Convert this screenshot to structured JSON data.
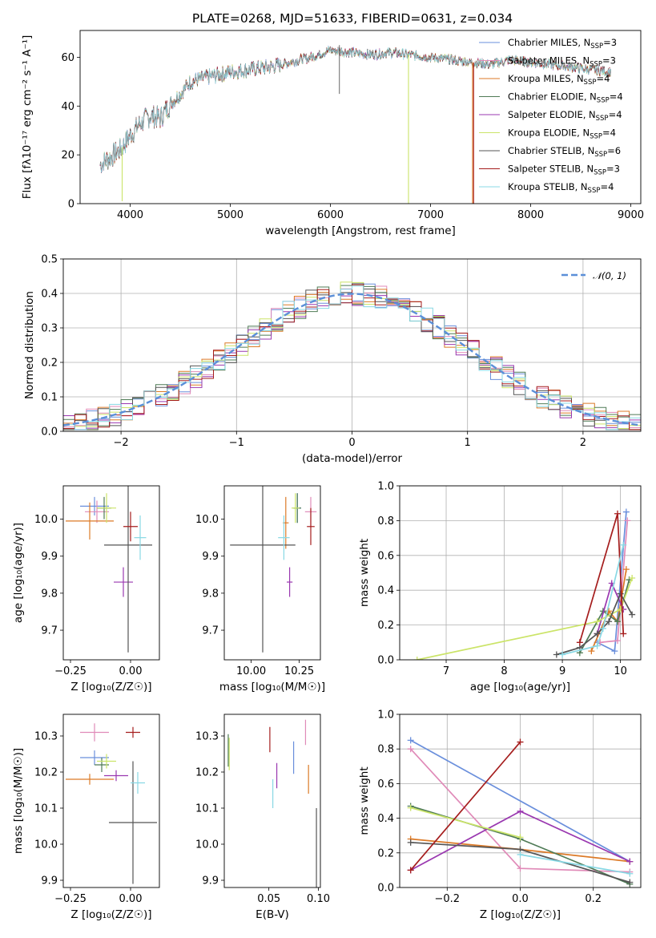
{
  "figure": {
    "title": "PLATE=0268, MJD=51633, FIBERID=0631, z=0.034"
  },
  "colors": {
    "Chabrier MILES": "#6a8fdc",
    "Salpeter MILES": "#e08ab8",
    "Kroupa MILES": "#dc7a27",
    "Chabrier ELODIE": "#4f7b56",
    "Salpeter ELODIE": "#9a38b0",
    "Kroupa ELODIE": "#cbe468",
    "Chabrier STELIB": "#555555",
    "Salpeter STELIB": "#a51d1d",
    "Kroupa STELIB": "#88d8e4",
    "normal": "#5b8fd8"
  },
  "chart_data": [
    {
      "id": "spectrum",
      "type": "line",
      "xlabel": "wavelength [Angstrom, rest frame]",
      "ylabel": "Flux [fλ10⁻¹⁷ erg cm⁻² s⁻¹ A⁻¹]",
      "xlim": [
        3500,
        9100
      ],
      "ylim": [
        0,
        71
      ],
      "xticks": [
        4000,
        5000,
        6000,
        7000,
        8000,
        9000
      ],
      "yticks": [
        0,
        20,
        40,
        60
      ],
      "continuum": {
        "x": [
          3700,
          3800,
          3900,
          4000,
          4100,
          4200,
          4300,
          4400,
          4500,
          4600,
          4800,
          5000,
          5200,
          5400,
          5600,
          5800,
          6000,
          6200,
          6400,
          6600,
          6800,
          7000,
          7200,
          7400,
          7600,
          7800,
          8000,
          8200,
          8400,
          8600,
          8800
        ],
        "y": [
          16,
          19,
          22,
          28,
          33,
          36,
          35,
          41,
          45,
          50,
          52,
          54,
          55,
          56,
          58,
          60,
          63,
          62,
          61,
          62,
          61,
          60,
          59,
          58,
          57,
          59,
          58,
          57,
          56,
          55,
          54
        ]
      },
      "dropouts": [
        {
          "model": "Kroupa ELODIE",
          "x": 3920,
          "y": 1
        },
        {
          "model": "Kroupa ELODIE",
          "x": 6780,
          "y": 0
        },
        {
          "model": "Kroupa MILES",
          "x": 7420,
          "y": 0
        },
        {
          "model": "Salpeter STELIB",
          "x": 7430,
          "y": 0
        }
      ],
      "legend": [
        {
          "name": "Chabrier MILES",
          "label": "Chabrier MILES, N",
          "sub": "SSP",
          "eq": "=3"
        },
        {
          "name": "Salpeter MILES",
          "label": "Salpeter MILES, N",
          "sub": "SSP",
          "eq": "=3"
        },
        {
          "name": "Kroupa MILES",
          "label": "Kroupa MILES, N",
          "sub": "SSP",
          "eq": "=4"
        },
        {
          "name": "Chabrier ELODIE",
          "label": "Chabrier ELODIE, N",
          "sub": "SSP",
          "eq": "=4"
        },
        {
          "name": "Salpeter ELODIE",
          "label": "Salpeter ELODIE, N",
          "sub": "SSP",
          "eq": "=4"
        },
        {
          "name": "Kroupa ELODIE",
          "label": "Kroupa ELODIE, N",
          "sub": "SSP",
          "eq": "=4"
        },
        {
          "name": "Chabrier STELIB",
          "label": "Chabrier STELIB, N",
          "sub": "SSP",
          "eq": "=6"
        },
        {
          "name": "Salpeter STELIB",
          "label": "Salpeter STELIB, N",
          "sub": "SSP",
          "eq": "=3"
        },
        {
          "name": "Kroupa STELIB",
          "label": "Kroupa STELIB, N",
          "sub": "SSP",
          "eq": "=4"
        }
      ]
    },
    {
      "id": "residuals",
      "type": "step-histogram",
      "xlabel": "(data-model)/error",
      "ylabel": "Normed distribution",
      "xlim": [
        -2.5,
        2.5
      ],
      "ylim": [
        0,
        0.5
      ],
      "xticks": [
        -2,
        -1,
        0,
        1,
        2
      ],
      "yticks": [
        0.0,
        0.1,
        0.2,
        0.3,
        0.4,
        0.5
      ],
      "grid": true,
      "bin_width": 0.1,
      "curve_label": "𝒩(0, 1)",
      "legend_position": "upper right"
    },
    {
      "id": "age_vs_Z",
      "type": "errorbar",
      "xlabel": "Z [log₁₀(Z/Z☉)]",
      "ylabel": "age  [log₁₀(age/yr)]",
      "xlim": [
        -0.28,
        0.12
      ],
      "ylim": [
        9.62,
        10.09
      ],
      "xticks": [
        -0.25,
        0.0
      ],
      "yticks": [
        9.7,
        9.8,
        9.9,
        10.0
      ],
      "points": [
        {
          "model": "Chabrier MILES",
          "x": -0.15,
          "xerr": 0.06,
          "y": 10.035,
          "yerr": 0.025
        },
        {
          "model": "Salpeter MILES",
          "x": -0.14,
          "xerr": 0.05,
          "y": 10.02,
          "yerr": 0.03
        },
        {
          "model": "Kroupa MILES",
          "x": -0.17,
          "xerr": 0.1,
          "y": 9.995,
          "yerr": 0.05
        },
        {
          "model": "Chabrier ELODIE",
          "x": -0.11,
          "xerr": 0.03,
          "y": 10.03,
          "yerr": 0.03
        },
        {
          "model": "Salpeter ELODIE",
          "x": -0.03,
          "xerr": 0.04,
          "y": 9.83,
          "yerr": 0.04
        },
        {
          "model": "Kroupa ELODIE",
          "x": -0.1,
          "xerr": 0.04,
          "y": 10.03,
          "yerr": 0.04
        },
        {
          "model": "Chabrier STELIB",
          "x": -0.01,
          "xerr": 0.1,
          "y": 9.93,
          "yerr": 0.29
        },
        {
          "model": "Salpeter STELIB",
          "x": 0.0,
          "xerr": 0.03,
          "y": 9.98,
          "yerr": 0.04
        },
        {
          "model": "Kroupa STELIB",
          "x": 0.04,
          "xerr": 0.025,
          "y": 9.95,
          "yerr": 0.06
        }
      ]
    },
    {
      "id": "age_vs_mass",
      "type": "errorbar",
      "xlabel": "mass [log₁₀(M/M☉)]",
      "ylabel": "",
      "xlim": [
        9.86,
        10.36
      ],
      "ylim": [
        9.62,
        10.09
      ],
      "xticks": [
        10.0,
        10.25
      ],
      "yticks": [
        9.7,
        9.8,
        9.9,
        10.0
      ],
      "points": [
        {
          "model": "Chabrier MILES",
          "x": 10.24,
          "xerr": 0.02,
          "y": 10.03,
          "yerr": 0.04
        },
        {
          "model": "Salpeter MILES",
          "x": 10.31,
          "xerr": 0.03,
          "y": 10.02,
          "yerr": 0.04
        },
        {
          "model": "Kroupa MILES",
          "x": 10.18,
          "xerr": 0.015,
          "y": 9.99,
          "yerr": 0.07
        },
        {
          "model": "Chabrier ELODIE",
          "x": 10.24,
          "xerr": 0.02,
          "y": 10.03,
          "yerr": 0.04
        },
        {
          "model": "Salpeter ELODIE",
          "x": 10.2,
          "xerr": 0.015,
          "y": 9.83,
          "yerr": 0.04
        },
        {
          "model": "Kroupa ELODIE",
          "x": 10.23,
          "xerr": 0.02,
          "y": 10.03,
          "yerr": 0.04
        },
        {
          "model": "Chabrier STELIB",
          "x": 10.06,
          "xerr": 0.17,
          "y": 9.93,
          "yerr": 0.29
        },
        {
          "model": "Salpeter STELIB",
          "x": 10.31,
          "xerr": 0.02,
          "y": 9.98,
          "yerr": 0.05
        },
        {
          "model": "Kroupa STELIB",
          "x": 10.17,
          "xerr": 0.03,
          "y": 9.95,
          "yerr": 0.06
        }
      ]
    },
    {
      "id": "weight_vs_age",
      "type": "line",
      "xlabel": "age  [log₁₀(age/yr)]",
      "ylabel": "mass weight",
      "xlim": [
        6.2,
        10.35
      ],
      "ylim": [
        0,
        1
      ],
      "xticks": [
        7,
        8,
        9,
        10
      ],
      "yticks": [
        0.0,
        0.2,
        0.4,
        0.6,
        0.8,
        1.0
      ],
      "grid": true,
      "series": [
        {
          "model": "Chabrier MILES",
          "x": [
            9.6,
            9.9,
            10.1
          ],
          "y": [
            0.1,
            0.05,
            0.85
          ]
        },
        {
          "model": "Salpeter MILES",
          "x": [
            9.65,
            9.95,
            10.12
          ],
          "y": [
            0.1,
            0.11,
            0.8
          ]
        },
        {
          "model": "Kroupa MILES",
          "x": [
            9.5,
            9.8,
            9.95,
            10.1
          ],
          "y": [
            0.05,
            0.28,
            0.22,
            0.52
          ]
        },
        {
          "model": "Chabrier ELODIE",
          "x": [
            9.3,
            9.7,
            9.95,
            10.15
          ],
          "y": [
            0.04,
            0.28,
            0.22,
            0.46
          ]
        },
        {
          "model": "Salpeter ELODIE",
          "x": [
            9.6,
            9.85,
            10.05
          ],
          "y": [
            0.15,
            0.44,
            0.29
          ]
        },
        {
          "model": "Kroupa ELODIE",
          "x": [
            6.5,
            9.6,
            10.0,
            10.2
          ],
          "y": [
            0.0,
            0.22,
            0.29,
            0.47
          ]
        },
        {
          "model": "Chabrier STELIB",
          "x": [
            8.9,
            9.3,
            9.6,
            9.8,
            10.0,
            10.2
          ],
          "y": [
            0.03,
            0.07,
            0.15,
            0.22,
            0.38,
            0.26
          ]
        },
        {
          "model": "Salpeter STELIB",
          "x": [
            9.3,
            9.95,
            10.05
          ],
          "y": [
            0.1,
            0.84,
            0.15
          ]
        },
        {
          "model": "Kroupa STELIB",
          "x": [
            9.0,
            9.6,
            9.7,
            10.05
          ],
          "y": [
            0.03,
            0.08,
            0.18,
            0.66
          ]
        }
      ]
    },
    {
      "id": "mass_vs_Z",
      "type": "errorbar",
      "xlabel": "Z [log₁₀(Z/Z☉)]",
      "ylabel": "mass [log₁₀(M/M☉)]",
      "xlim": [
        -0.28,
        0.12
      ],
      "ylim": [
        9.88,
        10.36
      ],
      "xticks": [
        -0.25,
        0.0
      ],
      "yticks": [
        9.9,
        10.0,
        10.1,
        10.2,
        10.3
      ],
      "points": [
        {
          "model": "Chabrier MILES",
          "x": -0.15,
          "xerr": 0.06,
          "y": 10.24,
          "yerr": 0.02
        },
        {
          "model": "Salpeter MILES",
          "x": -0.15,
          "xerr": 0.06,
          "y": 10.31,
          "yerr": 0.025
        },
        {
          "model": "Kroupa MILES",
          "x": -0.17,
          "xerr": 0.1,
          "y": 10.18,
          "yerr": 0.015
        },
        {
          "model": "Chabrier ELODIE",
          "x": -0.12,
          "xerr": 0.03,
          "y": 10.22,
          "yerr": 0.02
        },
        {
          "model": "Salpeter ELODIE",
          "x": -0.06,
          "xerr": 0.05,
          "y": 10.19,
          "yerr": 0.015
        },
        {
          "model": "Kroupa ELODIE",
          "x": -0.1,
          "xerr": 0.04,
          "y": 10.23,
          "yerr": 0.02
        },
        {
          "model": "Chabrier STELIB",
          "x": 0.01,
          "xerr": 0.1,
          "y": 10.06,
          "yerr": 0.17
        },
        {
          "model": "Salpeter STELIB",
          "x": 0.01,
          "xerr": 0.03,
          "y": 10.31,
          "yerr": 0.015
        },
        {
          "model": "Kroupa STELIB",
          "x": 0.03,
          "xerr": 0.03,
          "y": 10.17,
          "yerr": 0.03
        }
      ]
    },
    {
      "id": "mass_vs_EBV",
      "type": "errorbar",
      "xlabel": "E(B-V)",
      "ylabel": "",
      "xlim": [
        0.005,
        0.102
      ],
      "ylim": [
        9.88,
        10.36
      ],
      "xticks": [
        0.05,
        0.1
      ],
      "yticks": [
        9.9,
        10.0,
        10.1,
        10.2,
        10.3
      ],
      "points": [
        {
          "model": "Chabrier MILES",
          "x": 0.075,
          "xerr": 0,
          "y": 10.24,
          "yerr": 0.045
        },
        {
          "model": "Salpeter MILES",
          "x": 0.087,
          "xerr": 0,
          "y": 10.31,
          "yerr": 0.035
        },
        {
          "model": "Kroupa MILES",
          "x": 0.09,
          "xerr": 0,
          "y": 10.18,
          "yerr": 0.04
        },
        {
          "model": "Chabrier ELODIE",
          "x": 0.009,
          "xerr": 0,
          "y": 10.26,
          "yerr": 0.045
        },
        {
          "model": "Salpeter ELODIE",
          "x": 0.058,
          "xerr": 0,
          "y": 10.19,
          "yerr": 0.035
        },
        {
          "model": "Kroupa ELODIE",
          "x": 0.01,
          "xerr": 0,
          "y": 10.25,
          "yerr": 0.045
        },
        {
          "model": "Chabrier STELIB",
          "x": 0.098,
          "xerr": 0,
          "y": 9.96,
          "yerr": 0.14
        },
        {
          "model": "Salpeter STELIB",
          "x": 0.051,
          "xerr": 0,
          "y": 10.29,
          "yerr": 0.035
        },
        {
          "model": "Kroupa STELIB",
          "x": 0.054,
          "xerr": 0,
          "y": 10.14,
          "yerr": 0.04
        }
      ]
    },
    {
      "id": "weight_vs_Z",
      "type": "line",
      "xlabel": "Z [log₁₀(Z/Z☉)]",
      "ylabel": "mass weight",
      "xlim": [
        -0.33,
        0.33
      ],
      "ylim": [
        0,
        1
      ],
      "xticks": [
        -0.2,
        0.0,
        0.2
      ],
      "yticks": [
        0.0,
        0.2,
        0.4,
        0.6,
        0.8,
        1.0
      ],
      "grid": true,
      "series": [
        {
          "model": "Chabrier MILES",
          "x": [
            -0.3,
            0.3
          ],
          "y": [
            0.85,
            0.15
          ]
        },
        {
          "model": "Salpeter MILES",
          "x": [
            -0.3,
            0.0,
            0.3
          ],
          "y": [
            0.8,
            0.11,
            0.09
          ]
        },
        {
          "model": "Kroupa MILES",
          "x": [
            -0.3,
            0.0,
            0.3
          ],
          "y": [
            0.28,
            0.22,
            0.15
          ]
        },
        {
          "model": "Chabrier ELODIE",
          "x": [
            -0.3,
            0.0,
            0.3
          ],
          "y": [
            0.47,
            0.28,
            0.02
          ]
        },
        {
          "model": "Salpeter ELODIE",
          "x": [
            -0.3,
            0.0,
            0.3
          ],
          "y": [
            0.1,
            0.44,
            0.15
          ]
        },
        {
          "model": "Kroupa ELODIE",
          "x": [
            -0.3,
            0.0
          ],
          "y": [
            0.46,
            0.29
          ]
        },
        {
          "model": "Chabrier STELIB",
          "x": [
            -0.3,
            0.0,
            0.3
          ],
          "y": [
            0.26,
            0.22,
            0.03
          ]
        },
        {
          "model": "Salpeter STELIB",
          "x": [
            -0.3,
            0.0
          ],
          "y": [
            0.1,
            0.84
          ]
        },
        {
          "model": "Kroupa STELIB",
          "x": [
            0.0,
            0.3
          ],
          "y": [
            0.19,
            0.08
          ]
        }
      ]
    }
  ]
}
